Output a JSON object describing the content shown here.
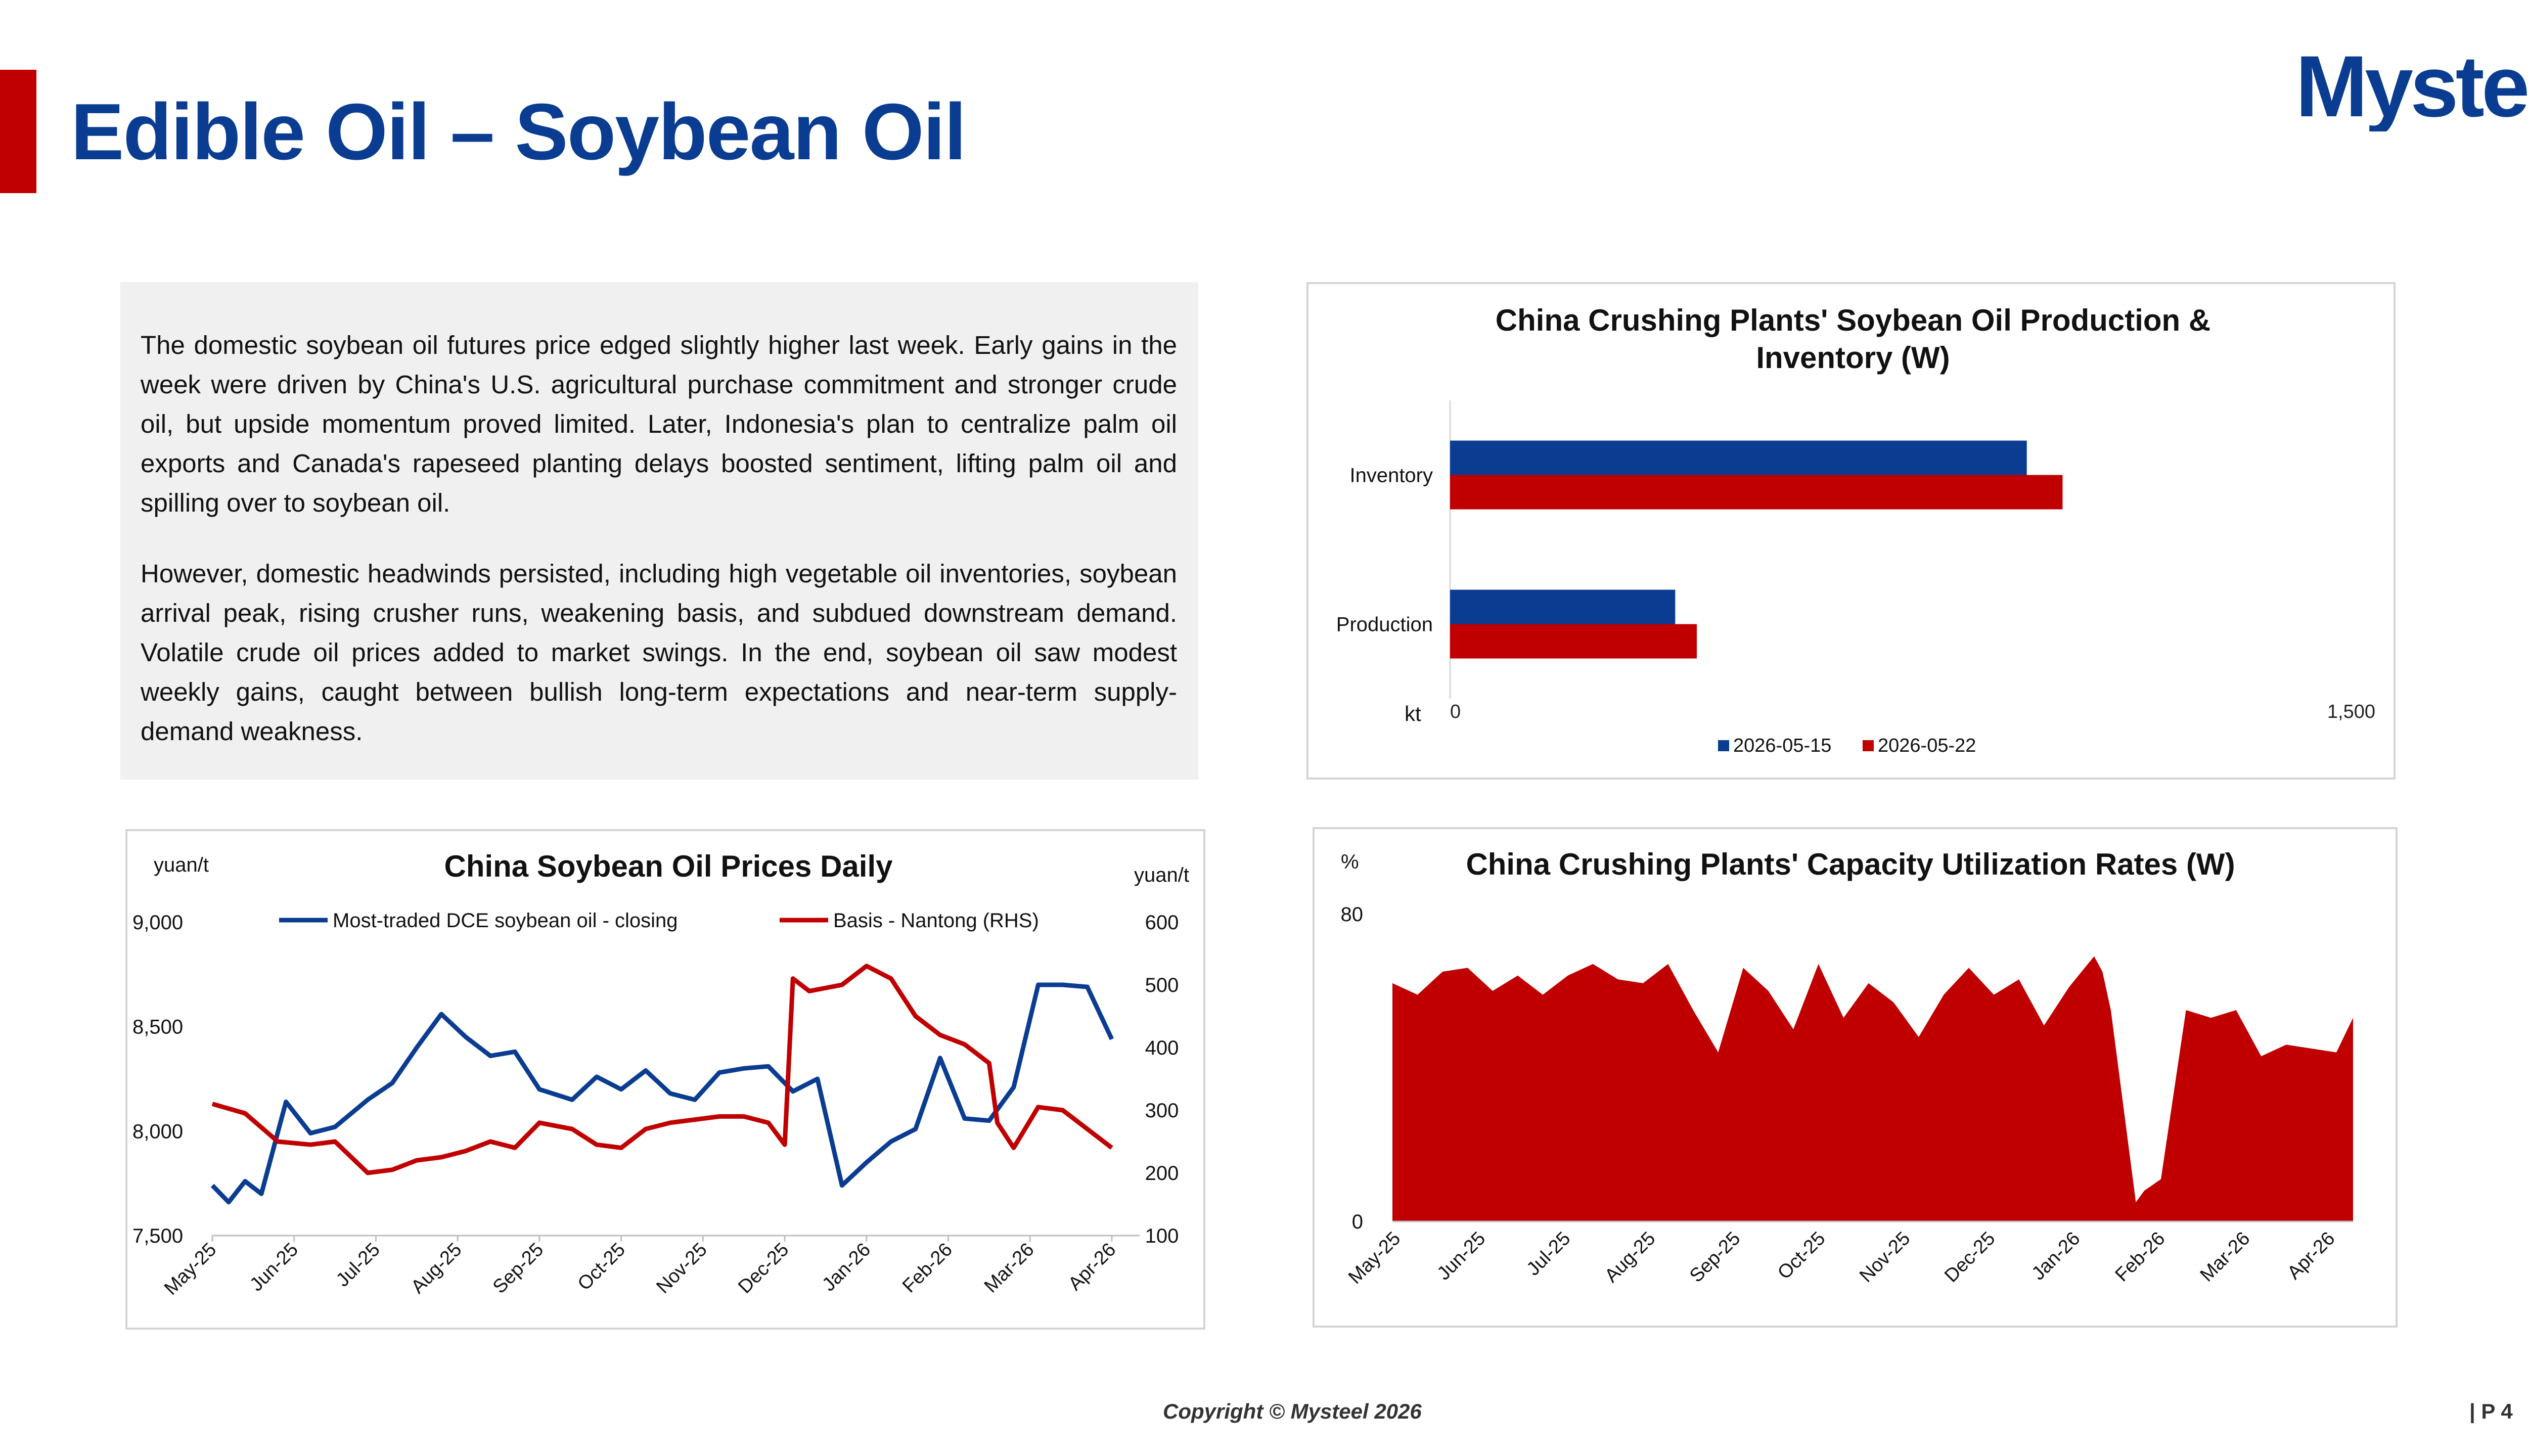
{
  "page": {
    "title": "Edible Oil – Soybean Oil",
    "logo_text": "Mysteel",
    "copyright": "Copyright © Mysteel 2026",
    "page_number": "| P 4",
    "colors": {
      "brand_blue": "#0a3d91",
      "brand_red": "#c00000",
      "panel_gray": "#f0f0f0"
    }
  },
  "commentary": {
    "paragraphs": [
      "The domestic soybean oil futures price edged slightly higher last week. Early gains in the week were driven by China's U.S. agricultural purchase commitment and stronger crude oil, but upside momentum proved limited. Later, Indonesia's plan to centralize palm oil exports and Canada's rapeseed planting delays boosted sentiment, lifting palm oil and spilling over to soybean oil.",
      "However, domestic headwinds persisted, including high vegetable oil inventories, soybean arrival peak, rising crusher runs, weakening basis, and subdued downstream demand. Volatile crude oil prices added to market swings. In the end, soybean oil saw modest weekly gains, caught between bullish long-term expectations and near-term supply-demand weakness."
    ]
  },
  "chart_data": [
    {
      "id": "production-inventory",
      "type": "bar",
      "orientation": "horizontal",
      "title": "China Crushing Plants' Soybean Oil Production & Inventory (W)",
      "unit_label": "kt",
      "categories": [
        "Inventory",
        "Production"
      ],
      "series": [
        {
          "name": "2026-05-15",
          "color": "#0a3d91",
          "values": [
            935,
            365
          ]
        },
        {
          "name": "2026-05-22",
          "color": "#c00000",
          "values": [
            993,
            400
          ]
        }
      ],
      "xlim": [
        0,
        1500
      ],
      "x_ticks": [
        0,
        1500
      ],
      "x_tick_labels": [
        "0",
        "1,500"
      ],
      "legend": "bottom",
      "grid": false
    },
    {
      "id": "prices-daily",
      "type": "line",
      "title": "China Soybean Oil Prices Daily",
      "ylabel_left": "yuan/t",
      "ylabel_right": "yuan/t",
      "x_labels": [
        "May-25",
        "Jun-25",
        "Jul-25",
        "Aug-25",
        "Sep-25",
        "Oct-25",
        "Nov-25",
        "Dec-25",
        "Jan-26",
        "Feb-26",
        "Mar-26",
        "Apr-26"
      ],
      "ylim_left": [
        7500,
        9000
      ],
      "y_ticks_left": [
        7500,
        8000,
        8500,
        9000
      ],
      "y_tick_labels_left": [
        "7,500",
        "8,000",
        "8,500",
        "9,000"
      ],
      "ylim_right": [
        100,
        600
      ],
      "y_ticks_right": [
        100,
        200,
        300,
        400,
        500,
        600
      ],
      "legend": "top",
      "grid": false,
      "series": [
        {
          "name": "Most-traded DCE soybean oil - closing",
          "axis": "left",
          "color": "#0a3d91",
          "x": [
            0,
            0.2,
            0.4,
            0.6,
            0.9,
            1.2,
            1.5,
            1.9,
            2.2,
            2.5,
            2.8,
            3.1,
            3.4,
            3.7,
            4.0,
            4.4,
            4.7,
            5.0,
            5.3,
            5.6,
            5.9,
            6.2,
            6.5,
            6.8,
            7.1,
            7.4,
            7.7,
            8.0,
            8.3,
            8.6,
            8.9,
            9.2,
            9.5,
            9.8,
            10.1,
            10.4,
            10.7,
            11.0
          ],
          "y": [
            7740,
            7660,
            7760,
            7700,
            8140,
            7990,
            8020,
            8150,
            8230,
            8400,
            8560,
            8450,
            8360,
            8380,
            8200,
            8150,
            8260,
            8200,
            8290,
            8180,
            8150,
            8280,
            8300,
            8310,
            8190,
            8250,
            7740,
            7850,
            7950,
            8010,
            8350,
            8060,
            8050,
            8210,
            8700,
            8700,
            8690,
            8440
          ]
        },
        {
          "name": "Basis - Nantong (RHS)",
          "axis": "right",
          "color": "#c00000",
          "x": [
            0,
            0.4,
            0.8,
            1.2,
            1.5,
            1.9,
            2.2,
            2.5,
            2.8,
            3.1,
            3.4,
            3.7,
            4.0,
            4.4,
            4.7,
            5.0,
            5.3,
            5.6,
            5.9,
            6.2,
            6.5,
            6.8,
            7.0,
            7.1,
            7.3,
            7.7,
            8.0,
            8.3,
            8.6,
            8.9,
            9.2,
            9.5,
            9.6,
            9.8,
            10.1,
            10.4,
            10.7,
            11.0
          ],
          "y": [
            310,
            295,
            250,
            245,
            250,
            200,
            205,
            220,
            225,
            235,
            250,
            240,
            280,
            270,
            245,
            240,
            270,
            280,
            285,
            290,
            290,
            280,
            245,
            510,
            490,
            500,
            530,
            510,
            450,
            420,
            405,
            375,
            280,
            240,
            305,
            300,
            270,
            240
          ]
        }
      ]
    },
    {
      "id": "capacity-utilization",
      "type": "area",
      "title": "China Crushing Plants' Capacity Utilization Rates (W)",
      "ylabel": "%",
      "x_labels": [
        "May-25",
        "Jun-25",
        "Jul-25",
        "Aug-25",
        "Sep-25",
        "Oct-25",
        "Nov-25",
        "Dec-25",
        "Jan-26",
        "Feb-26",
        "Mar-26",
        "Apr-26"
      ],
      "ylim": [
        0,
        80
      ],
      "y_ticks": [
        0,
        80
      ],
      "color": "#c00000",
      "grid": false,
      "x": [
        0,
        0.3,
        0.6,
        0.9,
        1.2,
        1.5,
        1.8,
        2.1,
        2.4,
        2.7,
        3.0,
        3.3,
        3.6,
        3.9,
        4.2,
        4.5,
        4.8,
        5.1,
        5.4,
        5.7,
        6.0,
        6.3,
        6.6,
        6.9,
        7.2,
        7.5,
        7.8,
        8.1,
        8.4,
        8.5,
        8.6,
        8.9,
        9.0,
        9.2,
        9.5,
        9.8,
        10.1,
        10.4,
        10.7,
        11.0,
        11.3,
        11.5
      ],
      "y": [
        62,
        59,
        65,
        66,
        60,
        64,
        59,
        64,
        67,
        63,
        62,
        67,
        55,
        44,
        66,
        60,
        50,
        67,
        53,
        62,
        57,
        48,
        59,
        66,
        59,
        63,
        51,
        61,
        69,
        65,
        55,
        5,
        8,
        11,
        55,
        53,
        55,
        43,
        46,
        45,
        44,
        53
      ]
    }
  ]
}
